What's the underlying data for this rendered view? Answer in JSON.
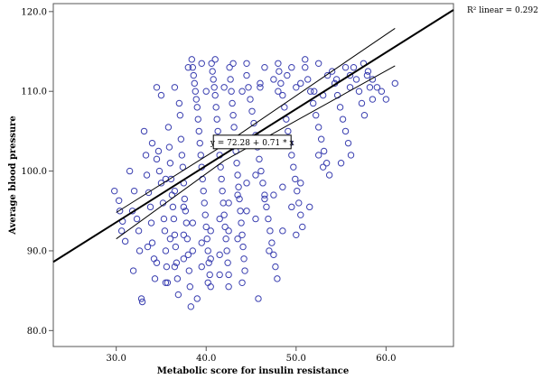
{
  "chart_data": {
    "type": "scatter",
    "xlabel": "Metabolic score for insulin resistance",
    "ylabel": "Average blood pressure",
    "xlim": [
      23.0,
      67.5
    ],
    "ylim": [
      78.0,
      121.0
    ],
    "xticks": [
      "30.0",
      "40.0",
      "50.0",
      "60.0"
    ],
    "yticks": [
      "80.0",
      "90.0",
      "100.0",
      "110.0",
      "120.0"
    ],
    "xtick_values": [
      30,
      40,
      50,
      60
    ],
    "ytick_values": [
      80,
      90,
      100,
      110,
      120
    ],
    "r2_label": "R² linear = 0.292",
    "equation": "y = 72.28 + 0.71 * x",
    "fit": {
      "intercept": 72.28,
      "slope": 0.71
    },
    "confidence_band": {
      "x_range": [
        30.0,
        61.0
      ],
      "upper": [
        [
          30.0,
          94.8
        ],
        [
          42.0,
          103.3
        ],
        [
          61.0,
          117.9
        ]
      ],
      "lower": [
        [
          30.0,
          91.5
        ],
        [
          42.0,
          101.3
        ],
        [
          61.0,
          113.2
        ]
      ]
    },
    "marker_color": "#3a3fb0",
    "line_color": "#000000",
    "points": [
      [
        29.8,
        97.5
      ],
      [
        30.3,
        96.3
      ],
      [
        30.4,
        95.0
      ],
      [
        30.6,
        92.5
      ],
      [
        30.7,
        93.7
      ],
      [
        31.0,
        91.2
      ],
      [
        31.5,
        100.0
      ],
      [
        31.8,
        95.0
      ],
      [
        31.9,
        87.5
      ],
      [
        32.0,
        97.5
      ],
      [
        32.3,
        94.0
      ],
      [
        32.5,
        92.5
      ],
      [
        32.6,
        90.0
      ],
      [
        32.8,
        84.0
      ],
      [
        32.9,
        83.6
      ],
      [
        33.1,
        105.0
      ],
      [
        33.3,
        102.0
      ],
      [
        33.4,
        99.5
      ],
      [
        33.6,
        97.3
      ],
      [
        33.8,
        95.5
      ],
      [
        33.9,
        93.5
      ],
      [
        34.0,
        91.0
      ],
      [
        34.2,
        89.0
      ],
      [
        34.3,
        86.5
      ],
      [
        34.5,
        110.5
      ],
      [
        34.7,
        102.5
      ],
      [
        34.8,
        100.0
      ],
      [
        35.0,
        98.5
      ],
      [
        35.2,
        96.0
      ],
      [
        35.3,
        94.0
      ],
      [
        35.4,
        92.5
      ],
      [
        35.5,
        90.0
      ],
      [
        35.6,
        88.0
      ],
      [
        35.7,
        86.0
      ],
      [
        35.8,
        105.5
      ],
      [
        35.9,
        103.0
      ],
      [
        36.0,
        101.0
      ],
      [
        36.1,
        99.0
      ],
      [
        36.2,
        97.0
      ],
      [
        36.3,
        95.5
      ],
      [
        36.4,
        94.0
      ],
      [
        36.5,
        92.0
      ],
      [
        36.6,
        90.5
      ],
      [
        36.7,
        88.5
      ],
      [
        36.8,
        86.5
      ],
      [
        36.9,
        84.5
      ],
      [
        37.0,
        108.5
      ],
      [
        37.1,
        107.0
      ],
      [
        37.2,
        104.0
      ],
      [
        37.3,
        102.0
      ],
      [
        37.4,
        100.5
      ],
      [
        37.5,
        98.5
      ],
      [
        37.6,
        96.5
      ],
      [
        37.7,
        95.0
      ],
      [
        37.8,
        93.5
      ],
      [
        37.9,
        91.5
      ],
      [
        38.0,
        89.5
      ],
      [
        38.1,
        87.5
      ],
      [
        38.2,
        85.5
      ],
      [
        38.3,
        83.0
      ],
      [
        38.4,
        114.0
      ],
      [
        38.5,
        113.0
      ],
      [
        38.6,
        112.0
      ],
      [
        38.7,
        111.0
      ],
      [
        38.8,
        110.0
      ],
      [
        38.9,
        109.0
      ],
      [
        39.0,
        108.0
      ],
      [
        39.1,
        106.5
      ],
      [
        39.2,
        105.0
      ],
      [
        39.3,
        103.5
      ],
      [
        39.4,
        102.0
      ],
      [
        39.5,
        100.5
      ],
      [
        39.6,
        99.0
      ],
      [
        39.7,
        97.5
      ],
      [
        39.8,
        96.0
      ],
      [
        39.9,
        94.5
      ],
      [
        40.0,
        93.0
      ],
      [
        40.1,
        91.5
      ],
      [
        40.2,
        90.0
      ],
      [
        40.3,
        88.5
      ],
      [
        40.4,
        87.0
      ],
      [
        40.5,
        85.5
      ],
      [
        40.6,
        113.5
      ],
      [
        40.7,
        112.5
      ],
      [
        40.8,
        111.5
      ],
      [
        40.9,
        110.5
      ],
      [
        41.0,
        109.5
      ],
      [
        41.1,
        108.0
      ],
      [
        41.2,
        106.5
      ],
      [
        41.3,
        105.0
      ],
      [
        41.4,
        103.5
      ],
      [
        41.5,
        102.0
      ],
      [
        41.6,
        100.5
      ],
      [
        41.7,
        99.0
      ],
      [
        41.8,
        97.5
      ],
      [
        41.9,
        96.0
      ],
      [
        42.0,
        94.5
      ],
      [
        42.1,
        93.0
      ],
      [
        42.2,
        91.5
      ],
      [
        42.3,
        90.0
      ],
      [
        42.4,
        88.5
      ],
      [
        42.5,
        87.0
      ],
      [
        42.6,
        113.0
      ],
      [
        42.7,
        111.5
      ],
      [
        42.8,
        110.0
      ],
      [
        42.9,
        108.5
      ],
      [
        43.0,
        107.0
      ],
      [
        43.1,
        105.5
      ],
      [
        43.2,
        104.0
      ],
      [
        43.3,
        102.5
      ],
      [
        43.4,
        101.0
      ],
      [
        43.5,
        99.5
      ],
      [
        43.6,
        98.0
      ],
      [
        43.7,
        96.5
      ],
      [
        43.8,
        95.0
      ],
      [
        43.9,
        93.5
      ],
      [
        44.0,
        92.0
      ],
      [
        44.1,
        90.5
      ],
      [
        44.2,
        89.0
      ],
      [
        44.3,
        87.5
      ],
      [
        44.5,
        112.0
      ],
      [
        44.7,
        110.5
      ],
      [
        44.9,
        109.0
      ],
      [
        45.1,
        107.5
      ],
      [
        45.3,
        106.0
      ],
      [
        45.5,
        104.5
      ],
      [
        45.7,
        103.0
      ],
      [
        45.9,
        101.5
      ],
      [
        46.1,
        100.0
      ],
      [
        46.3,
        98.5
      ],
      [
        46.5,
        97.0
      ],
      [
        46.7,
        95.5
      ],
      [
        46.9,
        94.0
      ],
      [
        47.1,
        92.5
      ],
      [
        47.3,
        91.0
      ],
      [
        47.5,
        89.5
      ],
      [
        47.7,
        88.0
      ],
      [
        47.9,
        86.5
      ],
      [
        48.1,
        112.5
      ],
      [
        48.3,
        111.0
      ],
      [
        48.5,
        109.5
      ],
      [
        48.7,
        108.0
      ],
      [
        48.9,
        106.5
      ],
      [
        49.1,
        105.0
      ],
      [
        49.3,
        103.5
      ],
      [
        49.5,
        102.0
      ],
      [
        49.7,
        100.5
      ],
      [
        49.9,
        99.0
      ],
      [
        50.1,
        97.5
      ],
      [
        50.3,
        96.0
      ],
      [
        50.5,
        94.5
      ],
      [
        50.7,
        93.0
      ],
      [
        51.0,
        113.0
      ],
      [
        51.3,
        111.5
      ],
      [
        51.6,
        110.0
      ],
      [
        51.9,
        108.5
      ],
      [
        52.2,
        107.0
      ],
      [
        52.5,
        105.5
      ],
      [
        52.8,
        104.0
      ],
      [
        53.1,
        102.5
      ],
      [
        53.4,
        101.0
      ],
      [
        53.7,
        99.5
      ],
      [
        54.0,
        112.5
      ],
      [
        54.3,
        111.0
      ],
      [
        54.6,
        109.5
      ],
      [
        54.9,
        108.0
      ],
      [
        55.2,
        106.5
      ],
      [
        55.5,
        105.0
      ],
      [
        55.8,
        103.5
      ],
      [
        56.1,
        102.0
      ],
      [
        56.4,
        113.0
      ],
      [
        56.7,
        111.5
      ],
      [
        57.0,
        110.0
      ],
      [
        57.3,
        108.5
      ],
      [
        57.6,
        107.0
      ],
      [
        57.9,
        112.0
      ],
      [
        58.2,
        110.5
      ],
      [
        58.5,
        109.0
      ],
      [
        59.0,
        110.5
      ],
      [
        60.0,
        109.0
      ],
      [
        61.0,
        111.0
      ],
      [
        34.0,
        103.5
      ],
      [
        36.0,
        91.5
      ],
      [
        37.5,
        89.0
      ],
      [
        39.0,
        84.0
      ],
      [
        40.2,
        86.0
      ],
      [
        41.5,
        89.5
      ],
      [
        42.5,
        85.5
      ],
      [
        44.0,
        86.0
      ],
      [
        45.8,
        84.0
      ],
      [
        47.0,
        90.0
      ],
      [
        48.5,
        92.5
      ],
      [
        50.0,
        92.0
      ],
      [
        51.5,
        95.5
      ],
      [
        52.5,
        102.0
      ],
      [
        53.0,
        100.5
      ],
      [
        55.0,
        101.0
      ],
      [
        55.5,
        113.0
      ],
      [
        56.0,
        112.0
      ],
      [
        57.5,
        113.5
      ],
      [
        58.0,
        112.5
      ],
      [
        58.5,
        111.5
      ],
      [
        59.5,
        110.0
      ],
      [
        46.0,
        111.0
      ],
      [
        47.5,
        111.5
      ],
      [
        49.0,
        112.0
      ],
      [
        50.5,
        111.0
      ],
      [
        52.0,
        110.0
      ],
      [
        53.5,
        112.0
      ],
      [
        54.5,
        111.5
      ],
      [
        43.0,
        113.5
      ],
      [
        41.0,
        114.0
      ],
      [
        39.5,
        113.5
      ],
      [
        38.0,
        113.0
      ],
      [
        44.5,
        113.5
      ],
      [
        46.5,
        113.0
      ],
      [
        48.0,
        113.5
      ],
      [
        49.5,
        113.0
      ],
      [
        51.0,
        114.0
      ],
      [
        52.5,
        113.5
      ],
      [
        36.5,
        110.5
      ],
      [
        35.0,
        109.5
      ],
      [
        40.0,
        110.0
      ],
      [
        42.0,
        110.5
      ],
      [
        44.0,
        110.0
      ],
      [
        46.0,
        110.5
      ],
      [
        48.0,
        110.0
      ],
      [
        50.0,
        110.5
      ],
      [
        53.0,
        109.5
      ],
      [
        56.0,
        110.5
      ],
      [
        34.5,
        101.5
      ],
      [
        35.5,
        99.0
      ],
      [
        36.5,
        97.5
      ],
      [
        37.5,
        95.5
      ],
      [
        38.5,
        93.5
      ],
      [
        39.5,
        91.0
      ],
      [
        40.5,
        89.0
      ],
      [
        41.5,
        87.0
      ],
      [
        42.5,
        92.5
      ],
      [
        43.5,
        91.5
      ],
      [
        44.5,
        95.0
      ],
      [
        45.5,
        94.0
      ],
      [
        46.5,
        96.5
      ],
      [
        47.5,
        97.0
      ],
      [
        48.5,
        98.0
      ],
      [
        49.5,
        95.5
      ],
      [
        50.5,
        98.5
      ],
      [
        33.5,
        90.5
      ],
      [
        34.5,
        88.5
      ],
      [
        35.5,
        86.0
      ],
      [
        36.5,
        88.0
      ],
      [
        37.5,
        92.0
      ],
      [
        38.5,
        90.0
      ],
      [
        39.5,
        88.0
      ],
      [
        40.5,
        92.5
      ],
      [
        41.5,
        94.0
      ],
      [
        42.5,
        96.0
      ],
      [
        43.5,
        97.0
      ],
      [
        44.5,
        98.5
      ],
      [
        45.5,
        99.5
      ]
    ]
  }
}
